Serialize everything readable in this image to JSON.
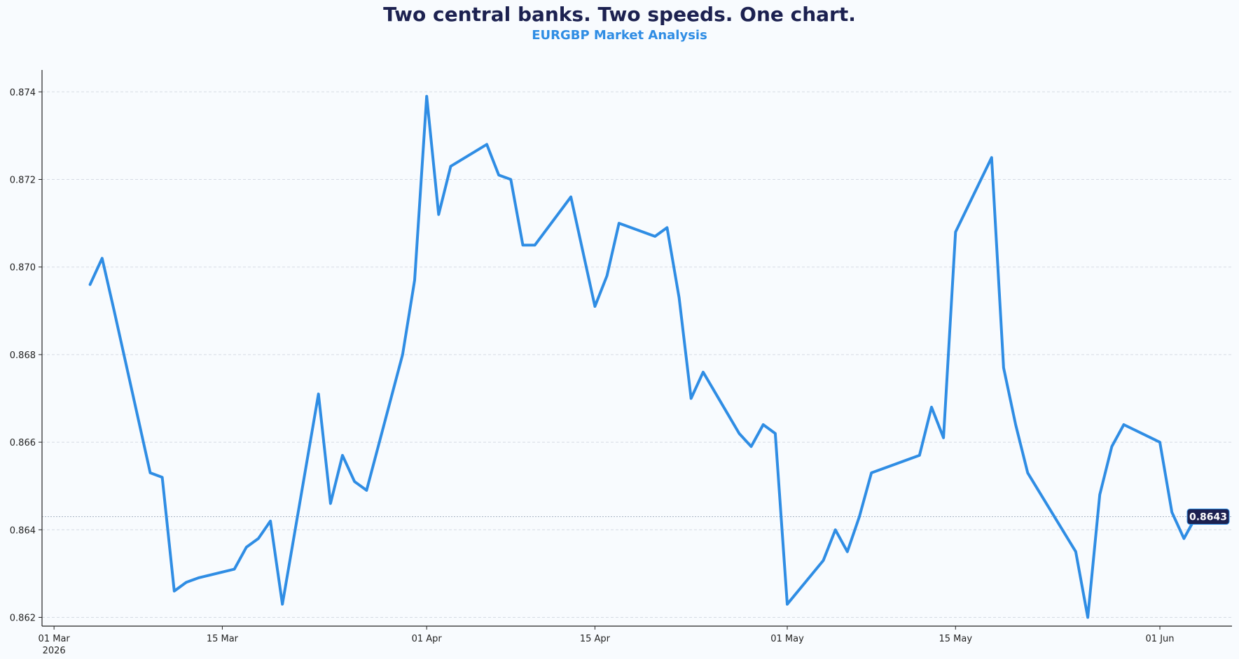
{
  "title": "Two central banks. Two speeds. One chart.",
  "subtitle": "EURGBP Market Analysis",
  "colors": {
    "line": "#2f8de4",
    "title": "#1c2150",
    "subtitle": "#2f8de4",
    "badge_bg": "#1c2150",
    "grid": "#d5dbe3"
  },
  "chart_data": {
    "type": "line",
    "title": "Two central banks. Two speeds. One chart.",
    "subtitle": "EURGBP Market Analysis",
    "xlabel": "",
    "ylabel": "",
    "grid": "horizontal dashed",
    "xlim": [
      "2026-02-28",
      "2026-06-07"
    ],
    "ylim": [
      0.8618,
      0.8745
    ],
    "y_ticks": [
      0.862,
      0.864,
      0.866,
      0.868,
      0.87,
      0.872,
      0.874
    ],
    "y_tick_labels": [
      "0.862",
      "0.864",
      "0.866",
      "0.868",
      "0.870",
      "0.872",
      "0.874"
    ],
    "x_ticks": [
      {
        "date": "2026-03-01",
        "label": "01 Mar",
        "label2": "2026"
      },
      {
        "date": "2026-03-15",
        "label": "15 Mar",
        "label2": ""
      },
      {
        "date": "2026-04-01",
        "label": "01 Apr",
        "label2": ""
      },
      {
        "date": "2026-04-15",
        "label": "15 Apr",
        "label2": ""
      },
      {
        "date": "2026-05-01",
        "label": "01 May",
        "label2": ""
      },
      {
        "date": "2026-05-15",
        "label": "15 May",
        "label2": ""
      },
      {
        "date": "2026-06-01",
        "label": "01 Jun",
        "label2": ""
      }
    ],
    "last_value_label": "0.8643",
    "series": [
      {
        "x": [
          "2026-03-04",
          "2026-03-05",
          "2026-03-06",
          "2026-03-09",
          "2026-03-10",
          "2026-03-11",
          "2026-03-12",
          "2026-03-13",
          "2026-03-16",
          "2026-03-17",
          "2026-03-18",
          "2026-03-19",
          "2026-03-20",
          "2026-03-23",
          "2026-03-24",
          "2026-03-25",
          "2026-03-26",
          "2026-03-27",
          "2026-03-30",
          "2026-03-31",
          "2026-04-01",
          "2026-04-02",
          "2026-04-03",
          "2026-04-06",
          "2026-04-07",
          "2026-04-08",
          "2026-04-09",
          "2026-04-10",
          "2026-04-13",
          "2026-04-15",
          "2026-04-16",
          "2026-04-17",
          "2026-04-20",
          "2026-04-21",
          "2026-04-22",
          "2026-04-23",
          "2026-04-24",
          "2026-04-27",
          "2026-04-28",
          "2026-04-29",
          "2026-04-30",
          "2026-05-01",
          "2026-05-04",
          "2026-05-05",
          "2026-05-06",
          "2026-05-07",
          "2026-05-08",
          "2026-05-11",
          "2026-05-12",
          "2026-05-13",
          "2026-05-14",
          "2026-05-15",
          "2026-05-18",
          "2026-05-19",
          "2026-05-20",
          "2026-05-21",
          "2026-05-25",
          "2026-05-26",
          "2026-05-27",
          "2026-05-28",
          "2026-05-29",
          "2026-06-01",
          "2026-06-02",
          "2026-06-03",
          "2026-06-04"
        ],
        "y": [
          0.8696,
          0.8702,
          0.869,
          0.8653,
          0.8652,
          0.8626,
          0.8628,
          0.8629,
          0.8631,
          0.8636,
          0.8638,
          0.8642,
          0.8623,
          0.8671,
          0.8646,
          0.8657,
          0.8651,
          0.8649,
          0.868,
          0.8697,
          0.8739,
          0.8712,
          0.8723,
          0.8728,
          0.8721,
          0.872,
          0.8705,
          0.8705,
          0.8716,
          0.8691,
          0.8698,
          0.871,
          0.8707,
          0.8709,
          0.8693,
          0.867,
          0.8676,
          0.8662,
          0.8659,
          0.8664,
          0.8662,
          0.8623,
          0.8633,
          0.864,
          0.8635,
          0.8643,
          0.8653,
          0.8656,
          0.8657,
          0.8668,
          0.8661,
          0.8708,
          0.8725,
          0.8677,
          0.8664,
          0.8653,
          0.8635,
          0.862,
          0.8648,
          0.8659,
          0.8664,
          0.866,
          0.8644,
          0.8638,
          0.8643
        ]
      }
    ]
  }
}
